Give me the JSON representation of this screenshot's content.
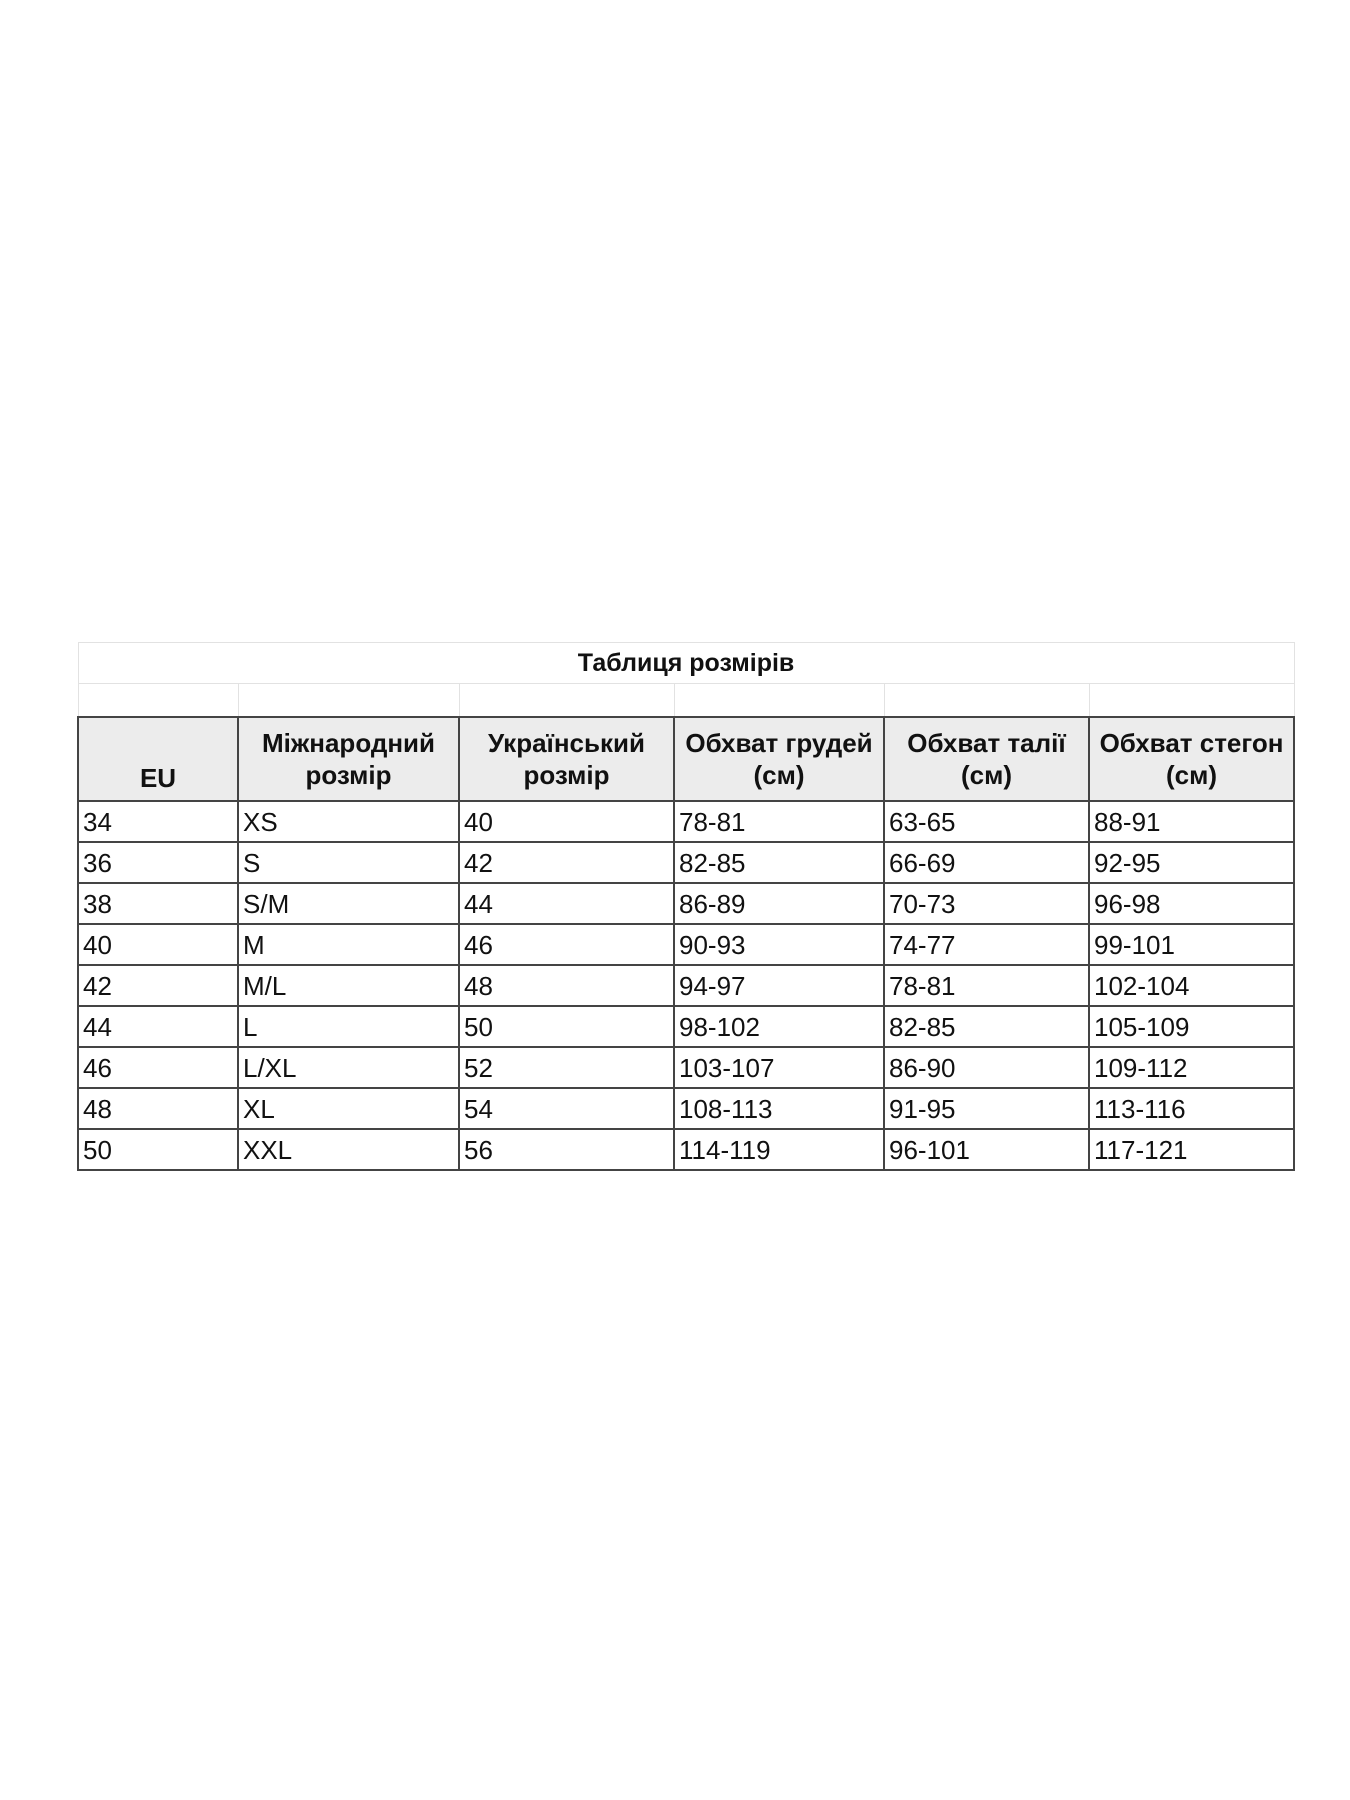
{
  "title": "Таблиця розмірів",
  "headers": [
    "EU",
    "Міжнародний розмір",
    "Український розмір",
    "Обхват грудей (см)",
    "Обхват талії (см)",
    "Обхват стегон (см)"
  ],
  "rows": [
    [
      "34",
      "XS",
      "40",
      "78-81",
      "63-65",
      "88-91"
    ],
    [
      "36",
      "S",
      "42",
      "82-85",
      "66-69",
      "92-95"
    ],
    [
      "38",
      "S/M",
      "44",
      "86-89",
      "70-73",
      "96-98"
    ],
    [
      "40",
      "M",
      "46",
      "90-93",
      "74-77",
      "99-101"
    ],
    [
      "42",
      "M/L",
      "48",
      "94-97",
      "78-81",
      "102-104"
    ],
    [
      "44",
      "L",
      "50",
      "98-102",
      "82-85",
      "105-109"
    ],
    [
      "46",
      "L/XL",
      "52",
      "103-107",
      "86-90",
      "109-112"
    ],
    [
      "48",
      "XL",
      "54",
      "108-113",
      "91-95",
      "113-116"
    ],
    [
      "50",
      "XXL",
      "56",
      "114-119",
      "96-101",
      "117-121"
    ]
  ]
}
